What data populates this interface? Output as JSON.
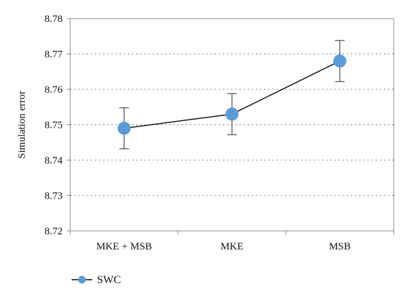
{
  "chart_data": {
    "type": "line",
    "title": "",
    "xlabel": "",
    "ylabel": "Simulation error",
    "categories": [
      "MKE + MSB",
      "MKE",
      "MSB"
    ],
    "series": [
      {
        "name": "SWC",
        "values": [
          8.749,
          8.753,
          8.768
        ],
        "error_low": [
          8.7432,
          8.7472,
          8.7622
        ],
        "error_high": [
          8.7548,
          8.7588,
          8.7738
        ],
        "color": "#5b9bd5"
      }
    ],
    "ylim": [
      8.72,
      8.78
    ],
    "yticks": [
      8.72,
      8.73,
      8.74,
      8.75,
      8.76,
      8.77,
      8.78
    ],
    "ytick_labels": [
      "8.72",
      "8.73",
      "8.74",
      "8.75",
      "8.76",
      "8.77",
      "8.78"
    ],
    "grid": "horizontal dotted",
    "legend_position": "bottom-left",
    "line_color": "#000000",
    "errorbar_color": "#555555"
  }
}
